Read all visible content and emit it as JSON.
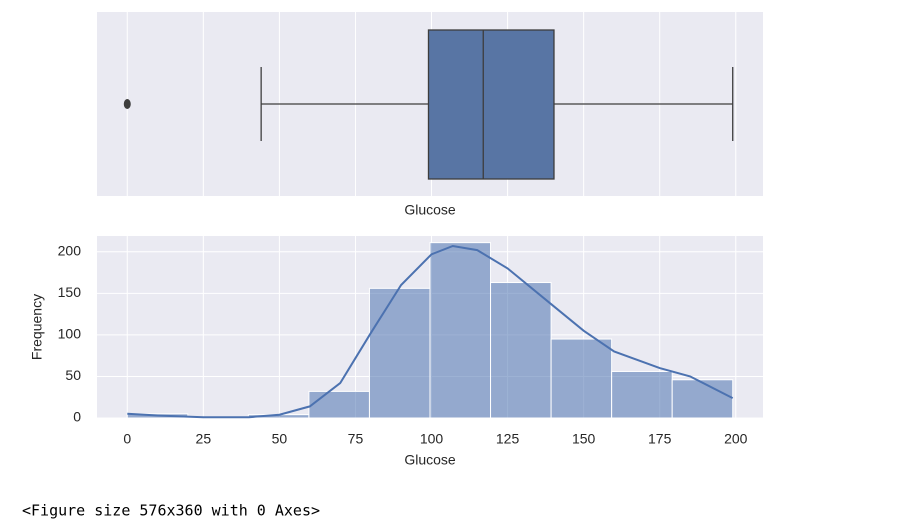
{
  "chart_data": [
    {
      "type": "box",
      "xlabel": "Glucose",
      "color": "#5875a4",
      "whislo": 44,
      "q1": 99,
      "median": 117,
      "q3": 140.25,
      "whishi": 199,
      "outliers": [
        0
      ],
      "xlim": [
        -9.95,
        208.95
      ],
      "grid": true
    },
    {
      "type": "histogram",
      "xlabel": "Glucose",
      "ylabel": "Frequency",
      "color": "#4c72b0",
      "bins": [
        0,
        19.9,
        39.8,
        59.7,
        79.6,
        99.5,
        119.4,
        139.3,
        159.2,
        179.1,
        199
      ],
      "values": [
        5,
        0,
        4,
        32,
        156,
        211,
        163,
        95,
        56,
        46
      ],
      "kde": {
        "x": [
          0,
          10,
          25,
          40,
          50,
          60,
          70,
          80,
          90,
          100,
          107,
          115,
          125,
          140,
          150,
          160,
          175,
          185,
          199
        ],
        "values": [
          5,
          3,
          1,
          1,
          4,
          14,
          42,
          102,
          160,
          197,
          207,
          202,
          180,
          135,
          105,
          80,
          60,
          50,
          24
        ]
      },
      "xlim": [
        -9.95,
        208.95
      ],
      "ylim": [
        0,
        219
      ],
      "xticks": [
        0,
        25,
        50,
        75,
        100,
        125,
        150,
        175,
        200
      ],
      "yticks": [
        0,
        50,
        100,
        150,
        200
      ],
      "grid": true
    }
  ],
  "figure_note": "<Figure size 576x360 with 0 Axes>"
}
